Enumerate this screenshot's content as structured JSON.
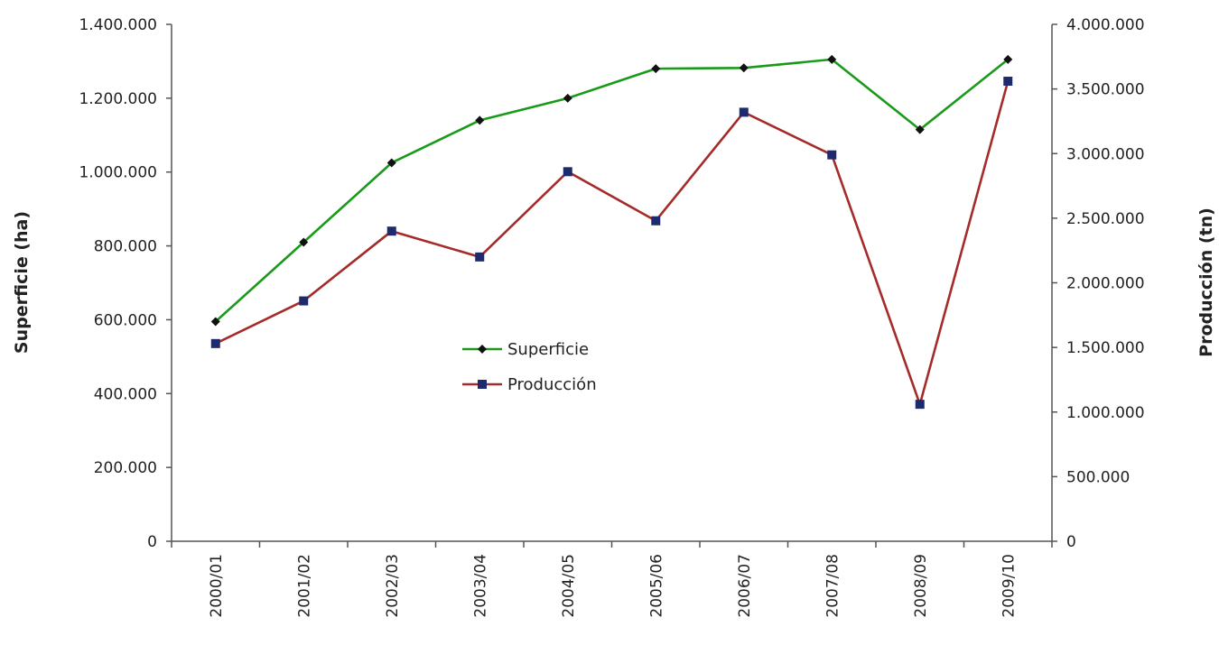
{
  "chart_data": {
    "type": "line",
    "categories": [
      "2000/01",
      "2001/02",
      "2002/03",
      "2003/04",
      "2004/05",
      "2005/06",
      "2006/07",
      "2007/08",
      "2008/09",
      "2009/10"
    ],
    "ylabel": "Superficie (ha)",
    "y2label": "Producción (tn)",
    "ylim": [
      0,
      1400000
    ],
    "y2lim": [
      0,
      4000000
    ],
    "yticks": [
      "0",
      "200.000",
      "400.000",
      "600.000",
      "800.000",
      "1.000.000",
      "1.200.000",
      "1.400.000"
    ],
    "y2ticks": [
      "0",
      "500.000",
      "1.000.000",
      "1.500.000",
      "2.000.000",
      "2.500.000",
      "3.000.000",
      "3.500.000",
      "4.000.000"
    ],
    "grid": false,
    "legend_position": "center",
    "series": [
      {
        "name": "Superficie",
        "axis": "left",
        "color": "#1a9a1a",
        "marker": "diamond",
        "marker_color": "#111111",
        "values": [
          595000,
          810000,
          1025000,
          1140000,
          1200000,
          1280000,
          1282000,
          1305000,
          1115000,
          1305000
        ]
      },
      {
        "name": "Producción",
        "axis": "right",
        "color": "#a52a2a",
        "marker": "square",
        "marker_color": "#1f2a6e",
        "values": [
          1530000,
          1860000,
          2400000,
          2200000,
          2860000,
          2480000,
          3320000,
          2990000,
          1060000,
          3560000
        ]
      }
    ]
  }
}
